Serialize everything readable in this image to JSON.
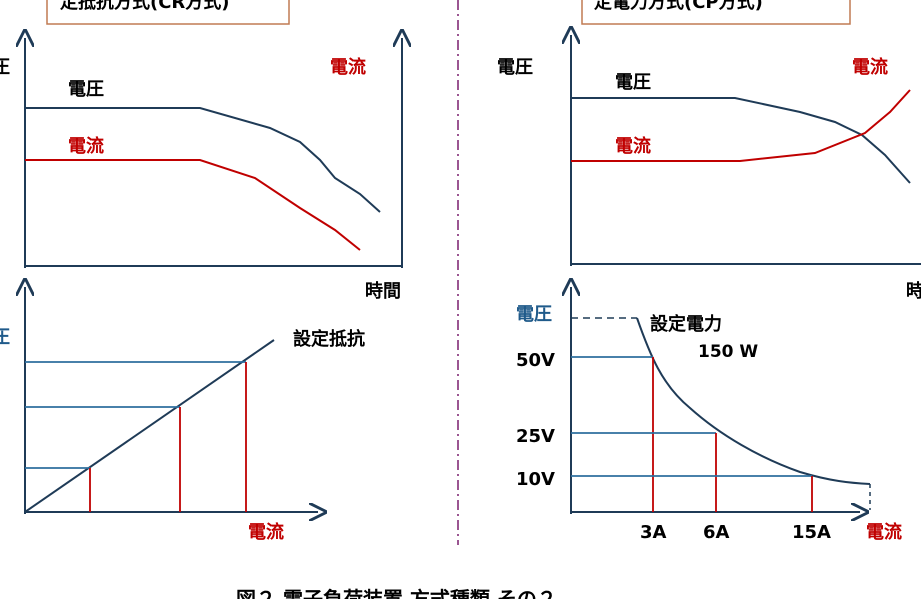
{
  "colors": {
    "voltage": "#1f3b57",
    "current": "#c00000",
    "axis": "#1f3b57",
    "box_border": "#c07a52",
    "divider": "#7a1f6f",
    "grid_blue": "#2e6f9e"
  },
  "left": {
    "title": "定抵抗方式(CR方式)",
    "top_chart": {
      "y_axis_label": "圧",
      "right_label": "電流",
      "voltage_label": "電圧",
      "current_label": "電流",
      "x_axis_label": "時間"
    },
    "bottom_chart": {
      "y_axis_label": "圧",
      "line_label": "設定抵抗",
      "x_axis_label": "電流"
    }
  },
  "right": {
    "title": "定電力方式(CP方式)",
    "top_chart": {
      "y_axis_label": "電圧",
      "right_label": "電流",
      "voltage_label": "電圧",
      "current_label": "電流",
      "x_axis_label": "時"
    },
    "bottom_chart": {
      "y_axis_label": "電圧",
      "curve_label_1": "設定電力",
      "curve_label_2": "150 W",
      "y_ticks": [
        "50V",
        "25V",
        "10V"
      ],
      "x_ticks": [
        "3A",
        "6A",
        "15A"
      ],
      "x_axis_label": "電流"
    }
  },
  "caption": "図２ 電子負荷装置 方式種類 その２"
}
